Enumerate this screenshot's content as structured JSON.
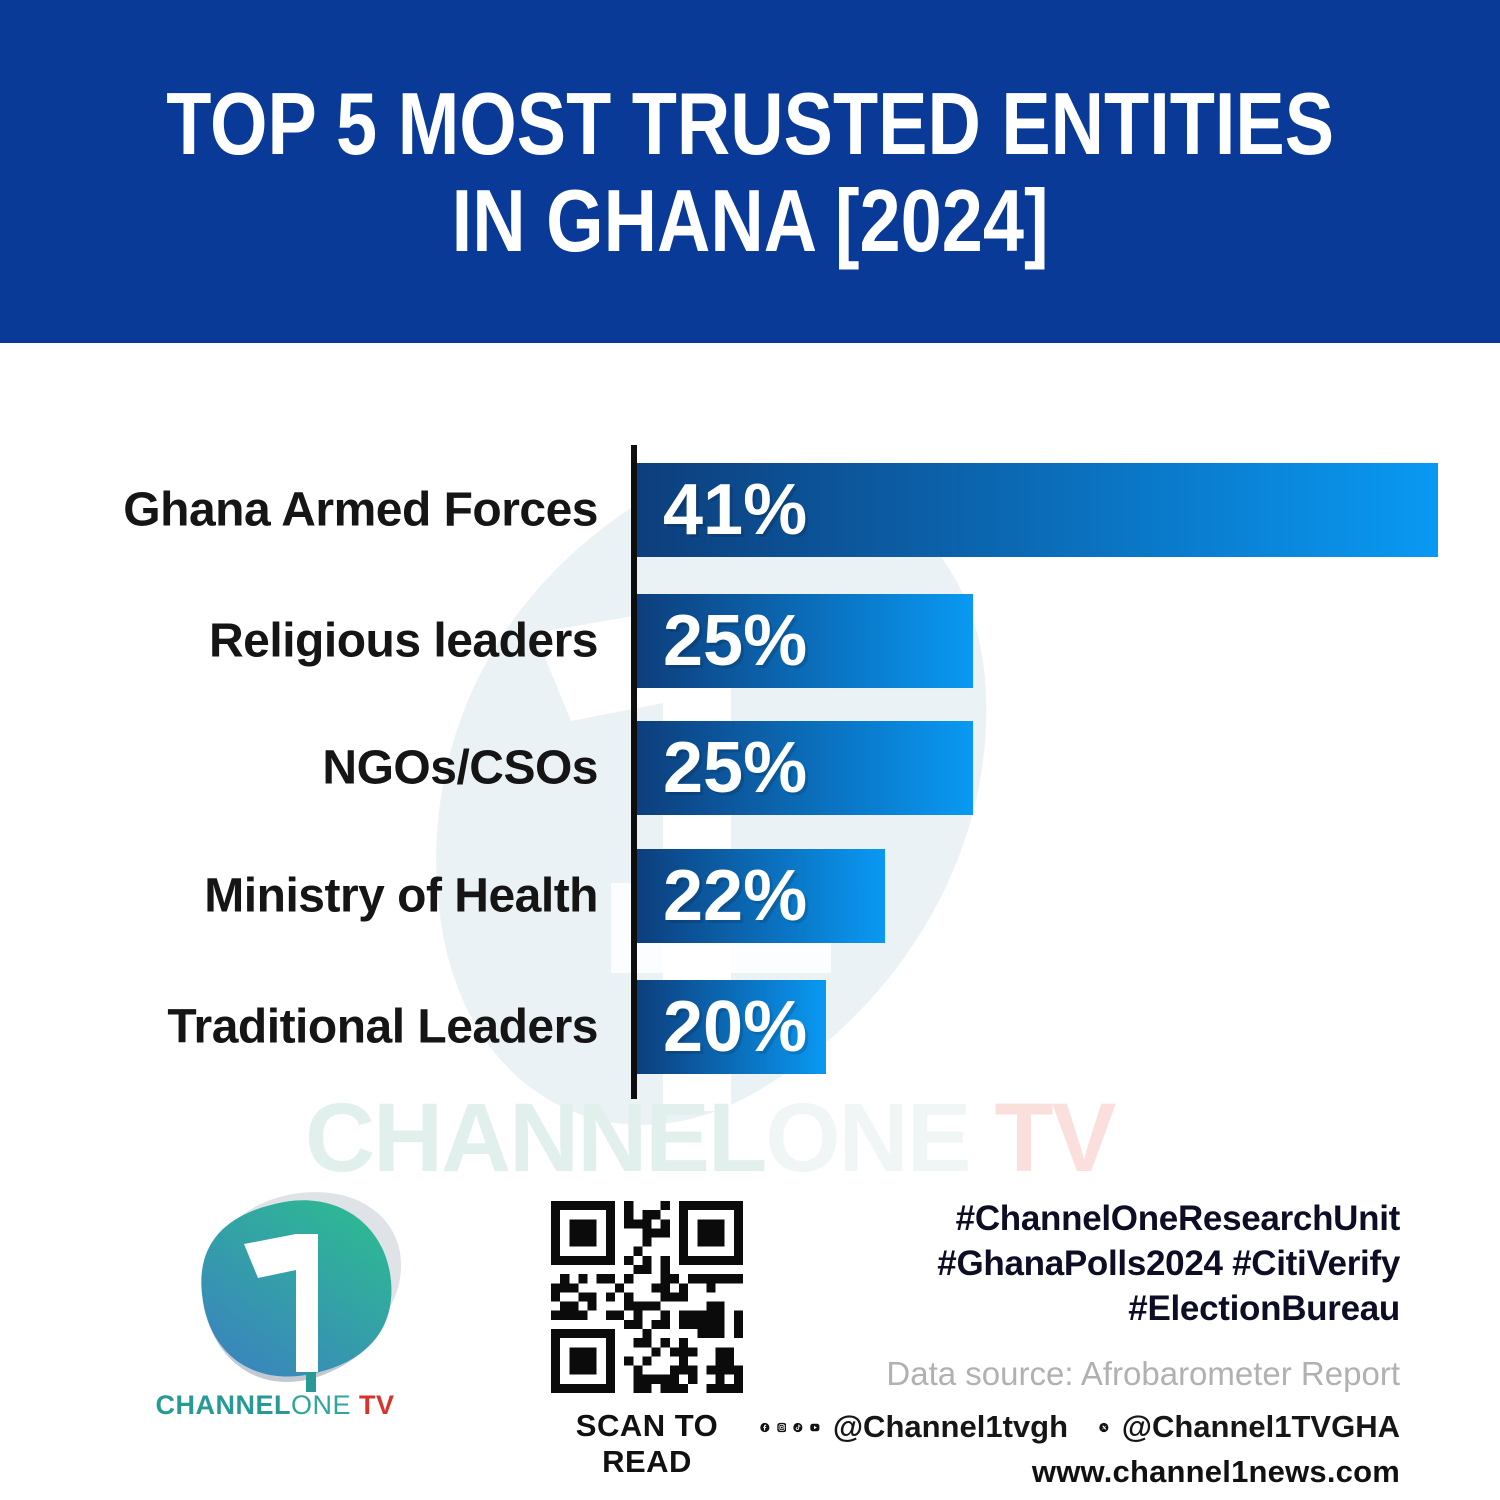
{
  "title": {
    "line1": "TOP 5 MOST TRUSTED ENTITIES",
    "line2": "IN GHANA [2024]"
  },
  "chart_data": {
    "type": "bar",
    "orientation": "horizontal",
    "title": "Top 5 most trusted entities in Ghana [2024]",
    "categories": [
      "Ghana Armed Forces",
      "Religious leaders",
      "NGOs/CSOs",
      "Ministry of Health",
      "Traditional Leaders"
    ],
    "values": [
      41,
      25,
      25,
      22,
      20
    ],
    "value_labels": [
      "41%",
      "25%",
      "25%",
      "22%",
      "20%"
    ],
    "bar_width_pct": [
      100,
      42,
      42,
      31,
      23.6
    ],
    "legend": "none",
    "grid": "off",
    "note": "bar lengths as drawn in source graphic are not linearly proportional to values"
  },
  "watermark": {
    "channel": "CHANNEL",
    "one": "ONE",
    "tv": "TV"
  },
  "footer": {
    "logo_wordmark": {
      "channel": "CHANNEL",
      "one": "ONE",
      "tv": "TV"
    },
    "qr_label": "SCAN TO READ",
    "hashtags": [
      "#ChannelOneResearchUnit",
      "#GhanaPolls2024 #CitiVerify",
      "#ElectionBureau"
    ],
    "data_source": "Data source: Afrobarometer Report",
    "social_handle_1": "@Channel1tvgh",
    "social_handle_2": "@Channel1TVGHA",
    "website": "www.channel1news.com"
  },
  "colors": {
    "banner_blue": "#0a3a98",
    "bar_gradient_start": "#0d3e7c",
    "bar_gradient_end": "#0999f3",
    "axis_black": "#0e0e0e",
    "label_black": "#151515",
    "hashtag_dark": "#0d0d26",
    "source_gray": "#b1b1b1",
    "logo_teal": "#279a95",
    "logo_teal_light": "#2fa59f",
    "logo_red": "#d6342c",
    "logo_green": "#2eb894",
    "logo_blue": "#3b7fc2",
    "watermark_teal": "#e2f0ed",
    "watermark_pink": "#fbdfdd",
    "watermark_shield": "#ebf2f6"
  }
}
